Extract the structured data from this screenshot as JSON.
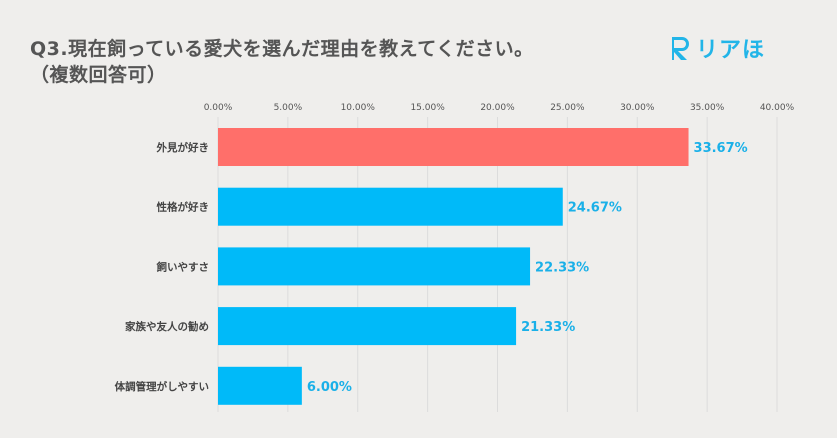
{
  "header": {
    "title_line1": "Q3.現在飼っている愛犬を選んだ理由を教えてください。",
    "title_line2": "（複数回答可）",
    "logo_text": "リアほ"
  },
  "colors": {
    "highlight": "#ff6f6a",
    "bar": "#00baf9",
    "label": "#1ab0e8",
    "background": "#efeeec"
  },
  "chart_data": {
    "type": "bar",
    "orientation": "horizontal",
    "title": "Q3.現在飼っている愛犬を選んだ理由を教えてください。（複数回答可）",
    "categories": [
      "外見が好き",
      "性格が好き",
      "飼いやすさ",
      "家族や友人の勧め",
      "体調管理がしやすい"
    ],
    "values": [
      33.67,
      24.67,
      22.33,
      21.33,
      6.0
    ],
    "value_labels": [
      "33.67%",
      "24.67%",
      "22.33%",
      "21.33%",
      "6.00%"
    ],
    "highlight_index": 0,
    "xlim": [
      0,
      40
    ],
    "xticks": [
      0,
      5,
      10,
      15,
      20,
      25,
      30,
      35,
      40
    ],
    "xtick_labels": [
      "0.00%",
      "5.00%",
      "10.00%",
      "15.00%",
      "20.00%",
      "25.00%",
      "30.00%",
      "35.00%",
      "40.00%"
    ],
    "xlabel": "",
    "ylabel": "",
    "grid": true,
    "tick_position": "top"
  }
}
